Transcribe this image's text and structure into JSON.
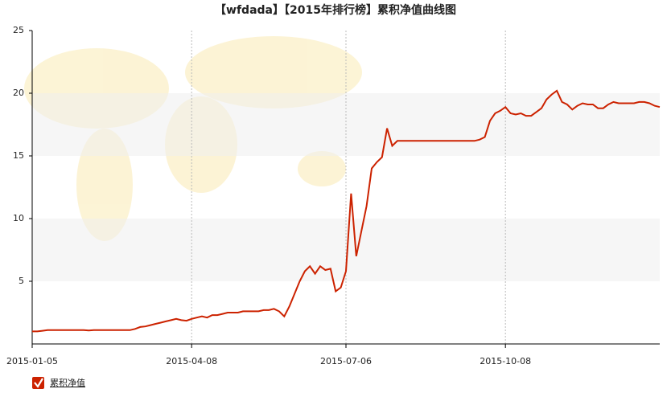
{
  "chart_data": {
    "type": "line",
    "title": "【wfdada】【2015年排行榜】累积净值曲线图",
    "categories": [
      "2015-01-05",
      null,
      null,
      null,
      null,
      null,
      null,
      null,
      null,
      null,
      null,
      null,
      null,
      null,
      null,
      null,
      null,
      null,
      null,
      null,
      null,
      null,
      null,
      null,
      null,
      null,
      null,
      null,
      null,
      null,
      null,
      "2015-04-08",
      null,
      null,
      null,
      null,
      null,
      null,
      null,
      null,
      null,
      null,
      null,
      null,
      null,
      null,
      null,
      null,
      null,
      null,
      null,
      null,
      null,
      null,
      null,
      null,
      null,
      null,
      null,
      null,
      null,
      "2015-07-06",
      null,
      null,
      null,
      null,
      null,
      null,
      null,
      null,
      null,
      null,
      null,
      null,
      null,
      null,
      null,
      null,
      null,
      null,
      null,
      null,
      null,
      null,
      null,
      null,
      null,
      null,
      null,
      null,
      null,
      null,
      "2015-10-08",
      null,
      null,
      null,
      null,
      null,
      null,
      null,
      null,
      null,
      null,
      null,
      null,
      null,
      null,
      null,
      null,
      null,
      null,
      null,
      null,
      null,
      null,
      null,
      null,
      null,
      null,
      null,
      null,
      null,
      null
    ],
    "series": [
      {
        "name": "累积净值",
        "color": "#cc2200",
        "values": [
          1.0,
          1.0,
          1.05,
          1.1,
          1.1,
          1.1,
          1.1,
          1.1,
          1.1,
          1.1,
          1.1,
          1.08,
          1.1,
          1.1,
          1.1,
          1.1,
          1.1,
          1.1,
          1.1,
          1.1,
          1.2,
          1.35,
          1.4,
          1.5,
          1.6,
          1.7,
          1.8,
          1.9,
          2.0,
          1.9,
          1.85,
          2.0,
          2.1,
          2.2,
          2.1,
          2.3,
          2.3,
          2.4,
          2.5,
          2.5,
          2.5,
          2.6,
          2.6,
          2.6,
          2.6,
          2.7,
          2.7,
          2.8,
          2.6,
          2.2,
          3.0,
          4.0,
          5.0,
          5.8,
          6.2,
          5.6,
          6.2,
          5.9,
          6.0,
          4.2,
          4.5,
          5.8,
          12.0,
          7.0,
          9.0,
          11.0,
          14.0,
          14.5,
          14.9,
          17.2,
          15.8,
          16.2,
          16.2,
          16.2,
          16.2,
          16.2,
          16.2,
          16.2,
          16.2,
          16.2,
          16.2,
          16.2,
          16.2,
          16.2,
          16.2,
          16.2,
          16.2,
          16.3,
          16.5,
          17.8,
          18.4,
          18.6,
          18.9,
          18.4,
          18.3,
          18.4,
          18.2,
          18.2,
          18.5,
          18.8,
          19.5,
          19.9,
          20.2,
          19.3,
          19.1,
          18.7,
          19.0,
          19.2,
          19.1,
          19.1,
          18.8,
          18.8,
          19.1,
          19.3,
          19.2,
          19.2,
          19.2,
          19.2,
          19.3,
          19.3,
          19.2,
          19.0,
          18.9
        ]
      }
    ],
    "ylim": [
      0,
      25
    ],
    "yticks": [
      5,
      10,
      15,
      20,
      25
    ],
    "legend": "bottom-left"
  }
}
